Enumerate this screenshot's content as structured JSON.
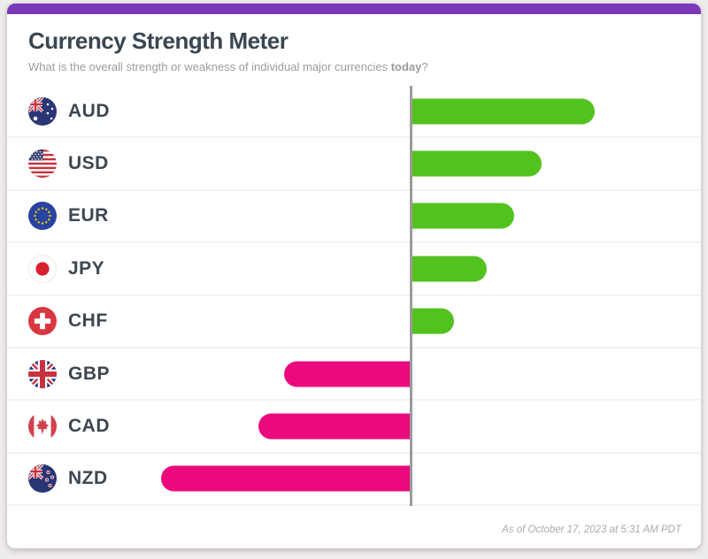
{
  "header": {
    "title": "Currency Strength Meter",
    "subtitle_prefix": "What is the overall strength or weakness of individual major currencies ",
    "subtitle_bold": "today",
    "subtitle_suffix": "?"
  },
  "footer": {
    "as_of": "As of October 17, 2023 at 5:31 AM PDT"
  },
  "colors": {
    "positive_bar": "#53c21e",
    "negative_bar": "#ea0a7e",
    "accent_top_bar": "#7a3ab8",
    "axis_line": "#9b9b9b"
  },
  "chart_data": {
    "type": "bar",
    "orientation": "horizontal-diverging",
    "baseline": 0,
    "unit": "relative strength, % of longest bar (no numeric axis shown)",
    "legend": "green = strong, pink = weak",
    "grid": "row separator lines only, no value axis",
    "rows": [
      {
        "code": "AUD",
        "flag": "australia",
        "value": 73
      },
      {
        "code": "USD",
        "flag": "united-states",
        "value": 52
      },
      {
        "code": "EUR",
        "flag": "european-union",
        "value": 41
      },
      {
        "code": "JPY",
        "flag": "japan",
        "value": 30
      },
      {
        "code": "CHF",
        "flag": "switzerland",
        "value": 17
      },
      {
        "code": "GBP",
        "flag": "united-kingdom",
        "value": -51
      },
      {
        "code": "CAD",
        "flag": "canada",
        "value": -61
      },
      {
        "code": "NZD",
        "flag": "new-zealand",
        "value": -100
      }
    ]
  }
}
